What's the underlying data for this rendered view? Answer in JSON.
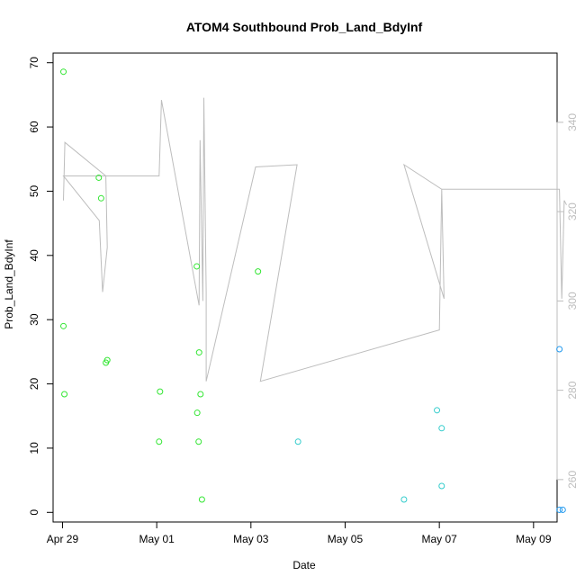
{
  "chart_data": {
    "type": "scatter",
    "title": "ATOM4 Southbound Prob_Land_BdyInf",
    "xlabel": "Date",
    "ylabel": "Prob_Land_BdyInf",
    "xlim": [
      -0.2,
      10.5
    ],
    "ylim": [
      -1.5,
      71.5
    ],
    "y2lim": [
      250.5,
      355.5
    ],
    "x_ticks": [
      {
        "value": 0,
        "label": "Apr 29"
      },
      {
        "value": 2,
        "label": "May 01"
      },
      {
        "value": 4,
        "label": "May 03"
      },
      {
        "value": 6,
        "label": "May 05"
      },
      {
        "value": 8,
        "label": "May 07"
      },
      {
        "value": 10,
        "label": "May 09"
      }
    ],
    "y_ticks": [
      0,
      10,
      20,
      30,
      40,
      50,
      60,
      70
    ],
    "y2_ticks": [
      260,
      280,
      300,
      320,
      340
    ],
    "colors": {
      "green": "#33e633",
      "cyan": "#33cccc",
      "blue": "#2299ee",
      "line": "#bdbdbd",
      "axis": "#000000",
      "right_axis": "#bdbdbd"
    },
    "points": [
      {
        "x": 0.02,
        "y": 68.6,
        "color": "green"
      },
      {
        "x": 0.02,
        "y": 29.0,
        "color": "green"
      },
      {
        "x": 0.04,
        "y": 18.4,
        "color": "green"
      },
      {
        "x": 0.77,
        "y": 52.1,
        "color": "green"
      },
      {
        "x": 0.82,
        "y": 48.9,
        "color": "green"
      },
      {
        "x": 0.92,
        "y": 23.3,
        "color": "green"
      },
      {
        "x": 0.95,
        "y": 23.7,
        "color": "green"
      },
      {
        "x": 2.07,
        "y": 18.8,
        "color": "green"
      },
      {
        "x": 2.05,
        "y": 11.0,
        "color": "green"
      },
      {
        "x": 2.85,
        "y": 38.3,
        "color": "green"
      },
      {
        "x": 2.9,
        "y": 24.9,
        "color": "green"
      },
      {
        "x": 2.93,
        "y": 18.4,
        "color": "green"
      },
      {
        "x": 2.86,
        "y": 15.5,
        "color": "green"
      },
      {
        "x": 2.89,
        "y": 11.0,
        "color": "green"
      },
      {
        "x": 2.96,
        "y": 2.0,
        "color": "green"
      },
      {
        "x": 4.15,
        "y": 37.5,
        "color": "green"
      },
      {
        "x": 5.0,
        "y": 11.0,
        "color": "cyan"
      },
      {
        "x": 7.25,
        "y": 2.0,
        "color": "cyan"
      },
      {
        "x": 7.95,
        "y": 15.9,
        "color": "cyan"
      },
      {
        "x": 8.05,
        "y": 13.1,
        "color": "cyan"
      },
      {
        "x": 8.05,
        "y": 4.1,
        "color": "cyan"
      },
      {
        "x": 10.55,
        "y": 25.4,
        "color": "blue"
      },
      {
        "x": 10.55,
        "y": 0.4,
        "color": "blue"
      },
      {
        "x": 10.62,
        "y": 0.4,
        "color": "blue"
      }
    ],
    "line_series": {
      "axis": "right",
      "x": [
        0.02,
        0.05,
        0.92,
        0.95,
        0.85,
        0.78,
        0.02,
        2.05,
        2.1,
        2.9,
        2.92,
        2.98,
        3.0,
        3.05,
        3.05,
        4.1,
        4.98,
        4.2,
        8.0,
        8.05,
        8.1,
        7.25,
        8.05,
        10.55,
        10.6,
        10.65,
        10.7
      ],
      "y": [
        322.5,
        335.5,
        328.0,
        312.0,
        302.0,
        318.0,
        328.0,
        328.0,
        345.0,
        299.0,
        336.0,
        300.0,
        345.5,
        302.0,
        282.0,
        330.0,
        330.5,
        282.0,
        293.5,
        325.0,
        300.5,
        330.5,
        325.0,
        325.0,
        300.5,
        322.5,
        321.5
      ]
    }
  }
}
